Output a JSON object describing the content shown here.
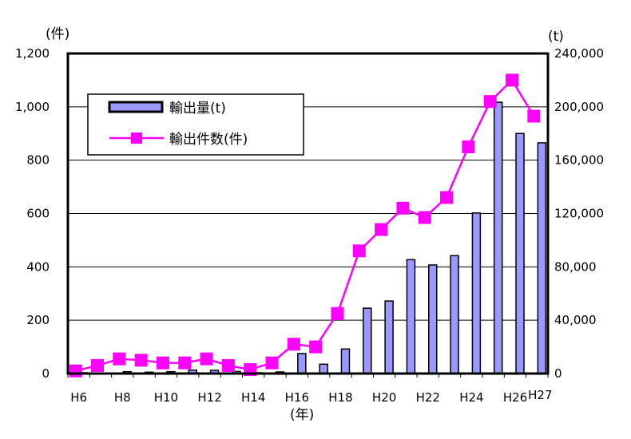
{
  "chart_data": {
    "type": "bar",
    "categories": [
      "H6",
      "H7",
      "H8",
      "H9",
      "H10",
      "H11",
      "H12",
      "H13",
      "H14",
      "H15",
      "H16",
      "H17",
      "H18",
      "H19",
      "H20",
      "H21",
      "H22",
      "H23",
      "H24",
      "H25",
      "H26",
      "H27"
    ],
    "x_tick_labels": [
      "H6",
      "H8",
      "H10",
      "H12",
      "H14",
      "H16",
      "H18",
      "H20",
      "H22",
      "H24",
      "H26",
      "H27"
    ],
    "x_unit_label": "(年)",
    "left_axis": {
      "unit_label": "(件)",
      "ylim": [
        0,
        1200
      ],
      "tick_labels": [
        "0",
        "200",
        "400",
        "600",
        "800",
        "1,000",
        "1,200"
      ]
    },
    "right_axis": {
      "unit_label": "(t)",
      "ylim": [
        0,
        240000
      ],
      "tick_labels": [
        "0",
        "40,000",
        "80,000",
        "120,000",
        "160,000",
        "200,000",
        "240,000"
      ]
    },
    "grid": "horizontal",
    "legend_position": "upper-left",
    "series": [
      {
        "name": "輸出量(t)",
        "kind": "bar",
        "axis": "right",
        "color": "#9999ff",
        "values": [
          600,
          300,
          1400,
          1000,
          1400,
          2600,
          2400,
          1600,
          600,
          1200,
          15000,
          7000,
          18400,
          49000,
          54400,
          85400,
          81400,
          88400,
          120400,
          203400,
          180000,
          173000
        ]
      },
      {
        "name": "輸出件数(件)",
        "kind": "line",
        "axis": "left",
        "color": "#ff00ff",
        "values": [
          10,
          30,
          55,
          50,
          40,
          40,
          55,
          30,
          15,
          40,
          110,
          100,
          225,
          460,
          540,
          620,
          585,
          660,
          850,
          1020,
          1100,
          965
        ]
      }
    ]
  }
}
